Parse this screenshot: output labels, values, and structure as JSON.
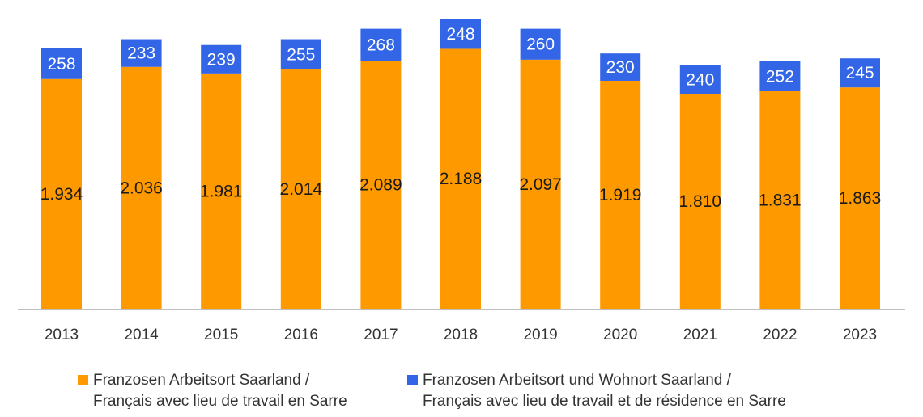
{
  "chart_data": {
    "type": "bar",
    "stacked": true,
    "categories": [
      "2013",
      "2014",
      "2015",
      "2016",
      "2017",
      "2018",
      "2019",
      "2020",
      "2021",
      "2022",
      "2023"
    ],
    "series": [
      {
        "name": "Franzosen Arbeitsort Saarland / Français avec lieu de travail en Sarre",
        "name_lines": [
          "Franzosen Arbeitsort Saarland /",
          "Français avec lieu de travail en Sarre"
        ],
        "color": "#FF9900",
        "values": [
          1934,
          2036,
          1981,
          2014,
          2089,
          2188,
          2097,
          1919,
          1810,
          1831,
          1863
        ],
        "labels": [
          "1.934",
          "2.036",
          "1.981",
          "2.014",
          "2.089",
          "2.188",
          "2.097",
          "1.919",
          "1.810",
          "1.831",
          "1.863"
        ]
      },
      {
        "name": "Franzosen Arbeitsort und Wohnort Saarland / Français avec lieu de travail et de résidence en Sarre",
        "name_lines": [
          "Franzosen Arbeitsort und Wohnort Saarland /",
          "Français avec lieu de travail et de résidence en Sarre"
        ],
        "color": "#3366E6",
        "values": [
          258,
          233,
          239,
          255,
          268,
          248,
          260,
          230,
          240,
          252,
          245
        ],
        "labels": [
          "258",
          "233",
          "239",
          "255",
          "268",
          "248",
          "260",
          "230",
          "240",
          "252",
          "245"
        ]
      }
    ],
    "title": "",
    "xlabel": "",
    "ylabel": "",
    "ylim": [
      0,
      2436
    ],
    "grid": false,
    "legend_position": "bottom"
  }
}
